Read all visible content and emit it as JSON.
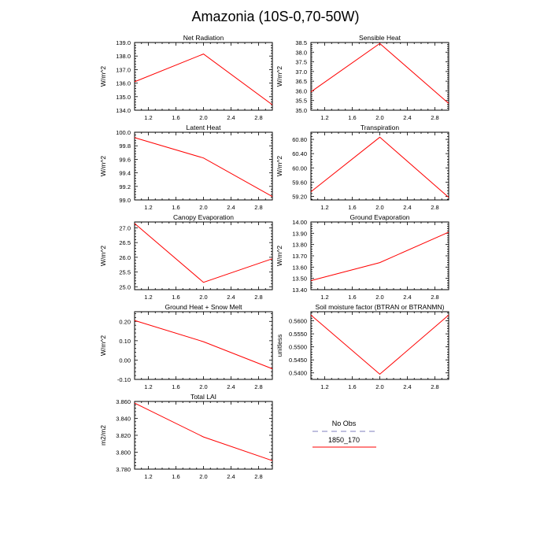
{
  "title": "Amazonia (10S-0,70-50W)",
  "line_color": "#ff0000",
  "obs_color": "#9999cc",
  "legend": {
    "obs_label": "No Obs",
    "model_label": "1850_170"
  },
  "chart_data": [
    {
      "type": "line",
      "title": "Net Radiation",
      "ylabel": "W/m^2",
      "xlim": [
        1.0,
        3.0
      ],
      "ylim": [
        134.0,
        139.0
      ],
      "xticks": [
        1.2,
        1.6,
        2.0,
        2.4,
        2.8
      ],
      "xtick_labels": [
        "1.2",
        "1.6",
        "2.0",
        "2.4",
        "2.8"
      ],
      "yticks": [
        134.0,
        135.0,
        136.0,
        137.0,
        138.0,
        139.0
      ],
      "ytick_labels": [
        "134.0",
        "135.0",
        "136.0",
        "137.0",
        "138.0",
        "139.0"
      ],
      "series": [
        {
          "name": "1850_170",
          "x": [
            1,
            2,
            3
          ],
          "y": [
            136.1,
            138.15,
            134.4
          ]
        }
      ]
    },
    {
      "type": "line",
      "title": "Sensible Heat",
      "ylabel": "W/m^2",
      "xlim": [
        1.0,
        3.0
      ],
      "ylim": [
        35.0,
        38.5
      ],
      "xticks": [
        1.2,
        1.6,
        2.0,
        2.4,
        2.8
      ],
      "xtick_labels": [
        "1.2",
        "1.6",
        "2.0",
        "2.4",
        "2.8"
      ],
      "yticks": [
        35.0,
        35.5,
        36.0,
        36.5,
        37.0,
        37.5,
        38.0,
        38.5
      ],
      "ytick_labels": [
        "35.0",
        "35.5",
        "36.0",
        "36.5",
        "37.0",
        "37.5",
        "38.0",
        "38.5"
      ],
      "series": [
        {
          "name": "1850_170",
          "x": [
            1,
            2,
            3
          ],
          "y": [
            35.95,
            38.45,
            35.35
          ]
        }
      ]
    },
    {
      "type": "line",
      "title": "Latent Heat",
      "ylabel": "W/m^2",
      "xlim": [
        1.0,
        3.0
      ],
      "ylim": [
        99.0,
        100.0
      ],
      "xticks": [
        1.2,
        1.6,
        2.0,
        2.4,
        2.8
      ],
      "xtick_labels": [
        "1.2",
        "1.6",
        "2.0",
        "2.4",
        "2.8"
      ],
      "yticks": [
        99.0,
        99.2,
        99.4,
        99.6,
        99.8,
        100.0
      ],
      "ytick_labels": [
        "99.0",
        "99.2",
        "99.4",
        "99.6",
        "99.8",
        "100.0"
      ],
      "series": [
        {
          "name": "1850_170",
          "x": [
            1,
            2,
            3
          ],
          "y": [
            99.92,
            99.62,
            99.05
          ]
        }
      ]
    },
    {
      "type": "line",
      "title": "Transpiration",
      "ylabel": "W/m^2",
      "xlim": [
        1.0,
        3.0
      ],
      "ylim": [
        59.1,
        61.0
      ],
      "xticks": [
        1.2,
        1.6,
        2.0,
        2.4,
        2.8
      ],
      "xtick_labels": [
        "1.2",
        "1.6",
        "2.0",
        "2.4",
        "2.8"
      ],
      "yticks": [
        59.2,
        59.6,
        60.0,
        60.4,
        60.8
      ],
      "ytick_labels": [
        "59.20",
        "59.60",
        "60.00",
        "60.40",
        "60.80"
      ],
      "series": [
        {
          "name": "1850_170",
          "x": [
            1,
            2,
            3
          ],
          "y": [
            59.33,
            60.86,
            59.17
          ]
        }
      ]
    },
    {
      "type": "line",
      "title": "Canopy Evaporation",
      "ylabel": "W/m^2",
      "xlim": [
        1.0,
        3.0
      ],
      "ylim": [
        24.9,
        27.2
      ],
      "xticks": [
        1.2,
        1.6,
        2.0,
        2.4,
        2.8
      ],
      "xtick_labels": [
        "1.2",
        "1.6",
        "2.0",
        "2.4",
        "2.8"
      ],
      "yticks": [
        25.0,
        25.5,
        26.0,
        26.5,
        27.0
      ],
      "ytick_labels": [
        "25.0",
        "25.5",
        "26.0",
        "26.5",
        "27.0"
      ],
      "series": [
        {
          "name": "1850_170",
          "x": [
            1,
            2,
            3
          ],
          "y": [
            27.15,
            25.15,
            25.95
          ]
        }
      ]
    },
    {
      "type": "line",
      "title": "Ground Evaporation",
      "ylabel": "W/m^2",
      "xlim": [
        1.0,
        3.0
      ],
      "ylim": [
        13.4,
        14.0
      ],
      "xticks": [
        1.2,
        1.6,
        2.0,
        2.4,
        2.8
      ],
      "xtick_labels": [
        "1.2",
        "1.6",
        "2.0",
        "2.4",
        "2.8"
      ],
      "yticks": [
        13.4,
        13.5,
        13.6,
        13.7,
        13.8,
        13.9,
        14.0
      ],
      "ytick_labels": [
        "13.40",
        "13.50",
        "13.60",
        "13.70",
        "13.80",
        "13.90",
        "14.00"
      ],
      "series": [
        {
          "name": "1850_170",
          "x": [
            1,
            2,
            3
          ],
          "y": [
            13.48,
            13.64,
            13.91
          ]
        }
      ]
    },
    {
      "type": "line",
      "title": "Ground Heat + Snow Melt",
      "ylabel": "W/m^2",
      "xlim": [
        1.0,
        3.0
      ],
      "ylim": [
        -0.1,
        0.25
      ],
      "xticks": [
        1.2,
        1.6,
        2.0,
        2.4,
        2.8
      ],
      "xtick_labels": [
        "1.2",
        "1.6",
        "2.0",
        "2.4",
        "2.8"
      ],
      "yticks": [
        -0.1,
        0.0,
        0.1,
        0.2
      ],
      "ytick_labels": [
        "-0.10",
        "0.00",
        "0.10",
        "0.20"
      ],
      "series": [
        {
          "name": "1850_170",
          "x": [
            1,
            2,
            3
          ],
          "y": [
            0.205,
            0.095,
            -0.045
          ]
        }
      ]
    },
    {
      "type": "line",
      "title": "Soil moisture factor (BTRAN or BTRANMN)",
      "ylabel": "unitless",
      "xlim": [
        1.0,
        3.0
      ],
      "ylim": [
        0.5375,
        0.5635
      ],
      "xticks": [
        1.2,
        1.6,
        2.0,
        2.4,
        2.8
      ],
      "xtick_labels": [
        "1.2",
        "1.6",
        "2.0",
        "2.4",
        "2.8"
      ],
      "yticks": [
        0.54,
        0.545,
        0.55,
        0.555,
        0.56
      ],
      "ytick_labels": [
        "0.5400",
        "0.5450",
        "0.5500",
        "0.5550",
        "0.5600"
      ],
      "series": [
        {
          "name": "1850_170",
          "x": [
            1,
            2,
            3
          ],
          "y": [
            0.5622,
            0.5395,
            0.5622
          ]
        }
      ]
    },
    {
      "type": "line",
      "title": "Total LAI",
      "ylabel": "m2/m2",
      "xlim": [
        1.0,
        3.0
      ],
      "ylim": [
        3.78,
        3.86
      ],
      "xticks": [
        1.2,
        1.6,
        2.0,
        2.4,
        2.8
      ],
      "xtick_labels": [
        "1.2",
        "1.6",
        "2.0",
        "2.4",
        "2.8"
      ],
      "yticks": [
        3.78,
        3.8,
        3.82,
        3.84,
        3.86
      ],
      "ytick_labels": [
        "3.780",
        "3.800",
        "3.820",
        "3.840",
        "3.860"
      ],
      "series": [
        {
          "name": "1850_170",
          "x": [
            1,
            2,
            3
          ],
          "y": [
            3.858,
            3.818,
            3.79
          ]
        }
      ]
    }
  ]
}
